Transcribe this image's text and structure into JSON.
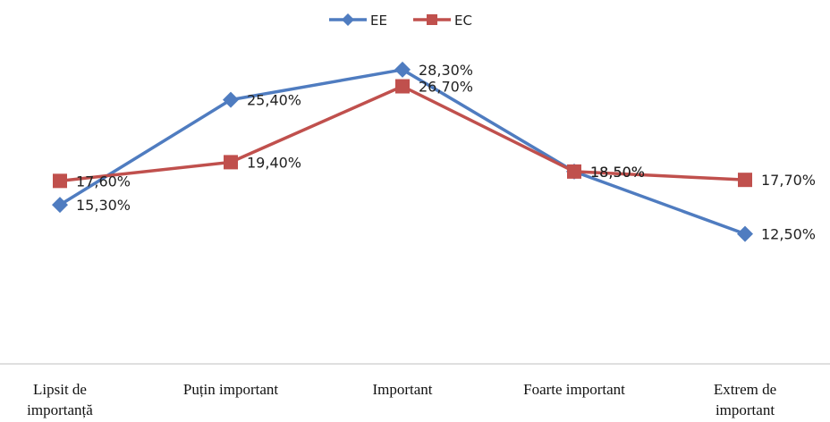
{
  "chart_data": {
    "type": "line",
    "categories": [
      "Lipsit de importanță",
      "Puțin important",
      "Important",
      "Foarte important",
      "Extrem de important"
    ],
    "category_lines": [
      [
        "Lipsit de",
        "importanță"
      ],
      [
        "Puțin important"
      ],
      [
        "Important"
      ],
      [
        "Foarte important"
      ],
      [
        "Extrem de",
        "important"
      ]
    ],
    "series": [
      {
        "name": "EE",
        "color": "#4F7CC0",
        "marker": "diamond",
        "values": [
          15.3,
          25.4,
          28.3,
          18.5,
          12.5
        ],
        "labels": [
          "15,30%",
          "25,40%",
          "28,30%",
          "18,50%",
          "12,50%"
        ]
      },
      {
        "name": "EC",
        "color": "#C0504D",
        "marker": "square",
        "values": [
          17.6,
          19.4,
          26.7,
          18.5,
          17.7
        ],
        "labels": [
          "17,60%",
          "19,40%",
          "26,70%",
          "18,50%",
          "17,70%"
        ]
      }
    ],
    "ylim": [
      0,
      35
    ],
    "grid": false,
    "legend_position": "top"
  }
}
